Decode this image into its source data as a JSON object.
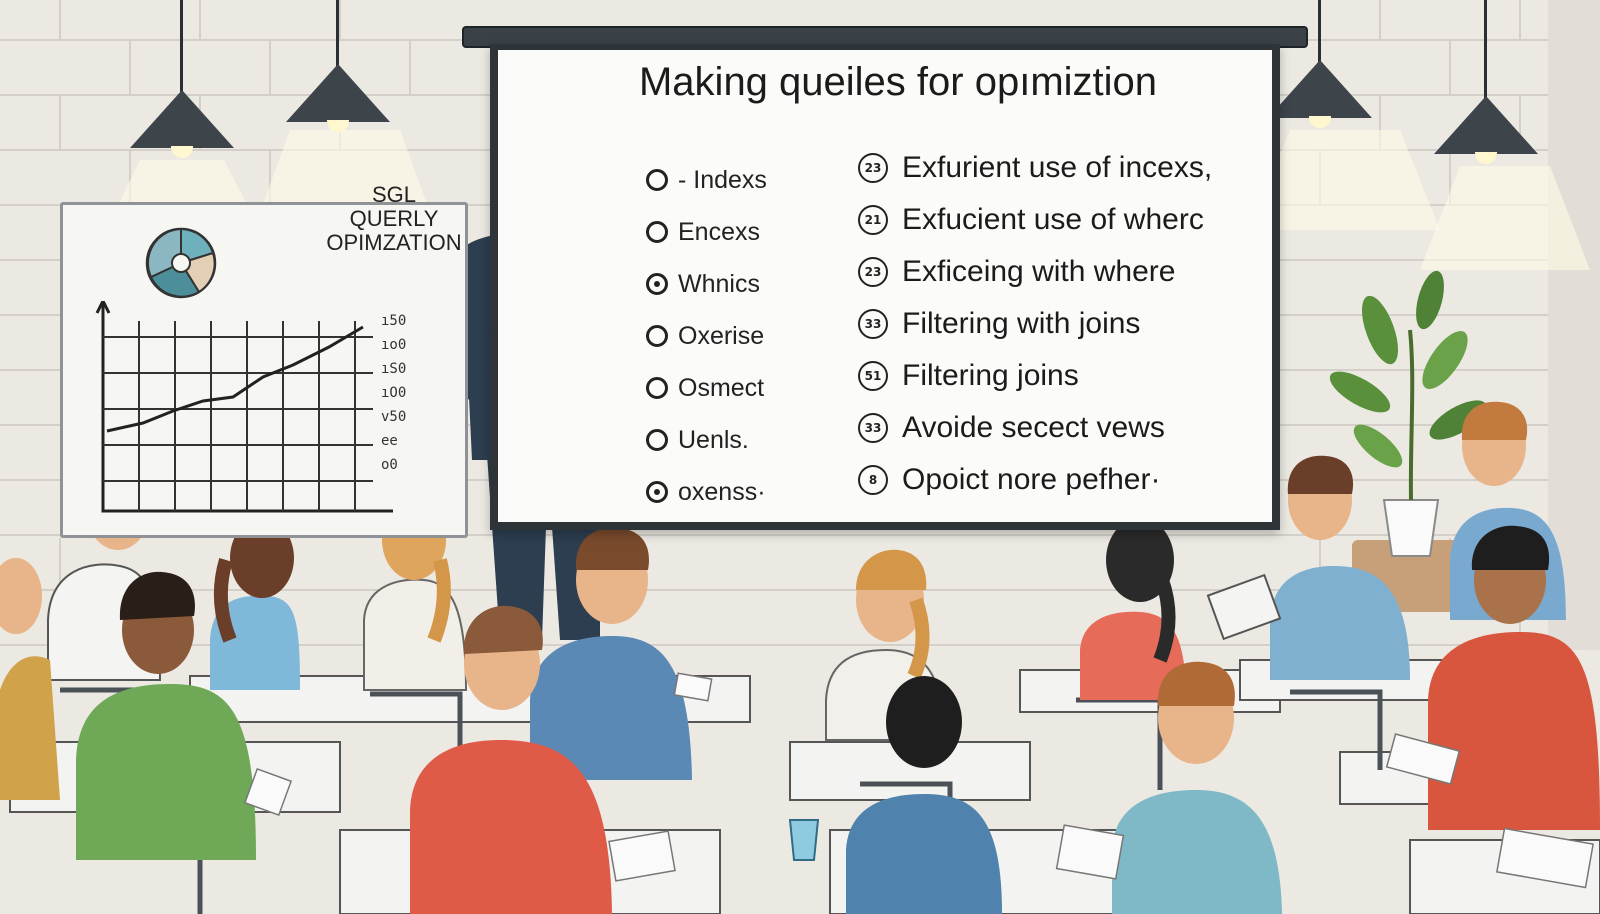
{
  "screen": {
    "title": "Making queiles for opımiztion",
    "left_items": [
      {
        "label": "- Indexs"
      },
      {
        "label": "Encexs"
      },
      {
        "label": "Whnics"
      },
      {
        "label": "Oxerise"
      },
      {
        "label": "Osmect"
      },
      {
        "label": "Uenls."
      },
      {
        "label": "oxenss·"
      }
    ],
    "right_items": [
      {
        "num": "23",
        "label": "Exfurient use of incexs,"
      },
      {
        "num": "21",
        "label": "Exfucient use of wherc"
      },
      {
        "num": "23",
        "label": "Exficeing with where"
      },
      {
        "num": "33",
        "label": "Filtering with joins"
      },
      {
        "num": "51",
        "label": "Filtering  joins"
      },
      {
        "num": "33",
        "label": "Avoide secect vews"
      },
      {
        "num": "8",
        "label": "Opoict nore pefher·"
      }
    ]
  },
  "whiteboard": {
    "title_line1": "SGL",
    "title_line2": "QUERLY",
    "title_line3": "OPIMZATION",
    "side_values": [
      "ı50",
      "ıo0",
      "ıS0",
      "ıO0",
      "v50",
      "ee",
      "o0"
    ]
  },
  "colors": {
    "wall": "#ece9e3",
    "brick_line": "#d4d0c9",
    "screen_frame": "#2e3438",
    "teacher_suit": "#2c3e50",
    "teacher_tie": "#1f3a5f",
    "desk": "#f3f3f1",
    "chair": "#4a5258",
    "plant": "#5a8f3c"
  }
}
